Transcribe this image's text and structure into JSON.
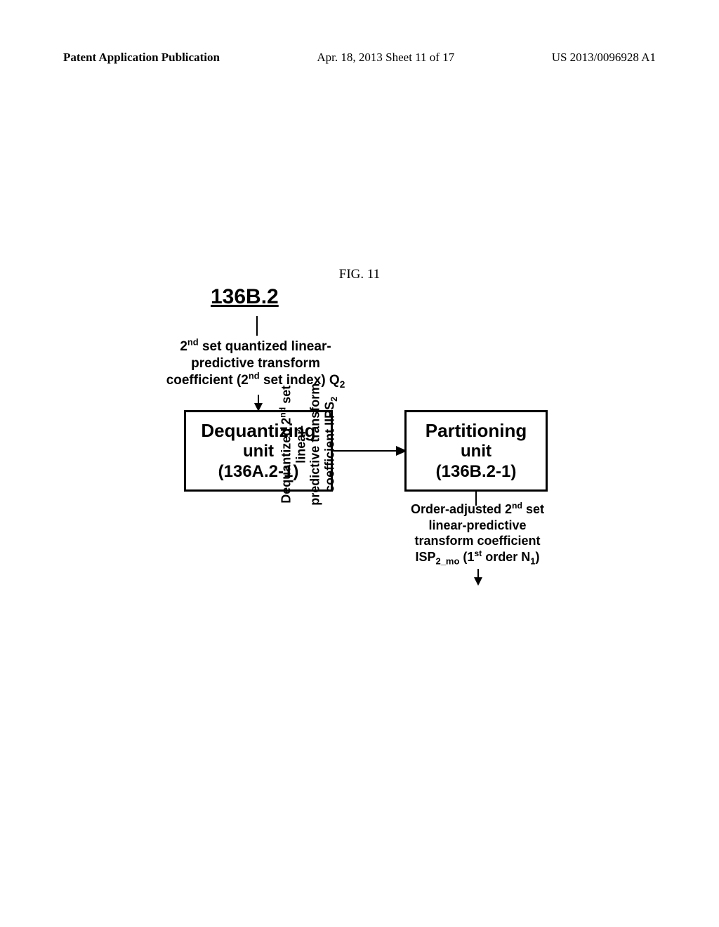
{
  "header": {
    "left": "Patent Application Publication",
    "center": "Apr. 18, 2013  Sheet 11 of 17",
    "right": "US 2013/0096928 A1"
  },
  "figure": {
    "caption": "FIG. 11",
    "reference": "136B.2",
    "input_label_html": "2<sup>nd</sup> set quantized linear-<br>predictive transform<br>coefficient (2<sup>nd</sup> set index) Q<sub>2</sub>",
    "box_dequant": {
      "title": "Dequantizing",
      "sub1": "unit",
      "sub2": "(136A.2-1)"
    },
    "mid_label_html": "Dequantized 2<sup>nd</sup> set linear-<br>predictive transform<br>coefficient IIPS<sub>2</sub>",
    "box_partition": {
      "title": "Partitioning",
      "sub1": "unit",
      "sub2": "(136B.2-1)"
    },
    "output_label_html": "Order-adjusted 2<sup>nd</sup> set<br>linear-predictive<br>transform coefficient<br>ISP<sub>2_mo</sub> (1<sup>st</sup> order N<sub>1</sub>)"
  },
  "style": {
    "text_color": "#000000",
    "bg_color": "#ffffff",
    "box_border_width": 3,
    "box_font": "Arial",
    "body_font": "Times New Roman",
    "arrow_stroke": "#000000",
    "arrow_stroke_width": 2
  }
}
